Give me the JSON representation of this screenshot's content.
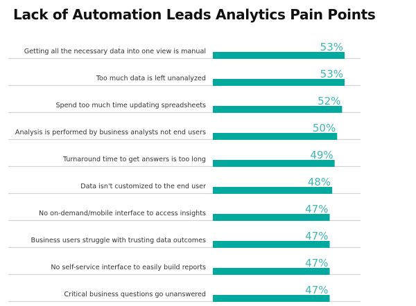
{
  "chart_data": {
    "type": "bar",
    "orientation": "horizontal",
    "title": "Lack of Automation Leads Analytics Pain Points",
    "categories": [
      "Getting all the necessary data into one view is manual",
      "Too much data is left unanalyzed",
      "Spend too much time updating spreadsheets",
      "Analysis is performed by business analysts not end users",
      "Turnaround time to get answers is too long",
      "Data isn't customized to the end user",
      "No on-demand/mobile interface to access insights",
      "Business users struggle with trusting data outcomes",
      "No self-service interface to easily build reports",
      "Critical business questions go unanswered"
    ],
    "values": [
      53,
      53,
      52,
      50,
      49,
      48,
      47,
      47,
      47,
      47
    ],
    "value_labels": [
      "53%",
      "53%",
      "52%",
      "50%",
      "49%",
      "48%",
      "47%",
      "47%",
      "47%",
      "47%"
    ],
    "unit": "%",
    "grid": false,
    "legend": "none",
    "colors": {
      "bar": "#00a99d",
      "label": "#3cb8ae",
      "rule": "#d3d3d3"
    }
  }
}
